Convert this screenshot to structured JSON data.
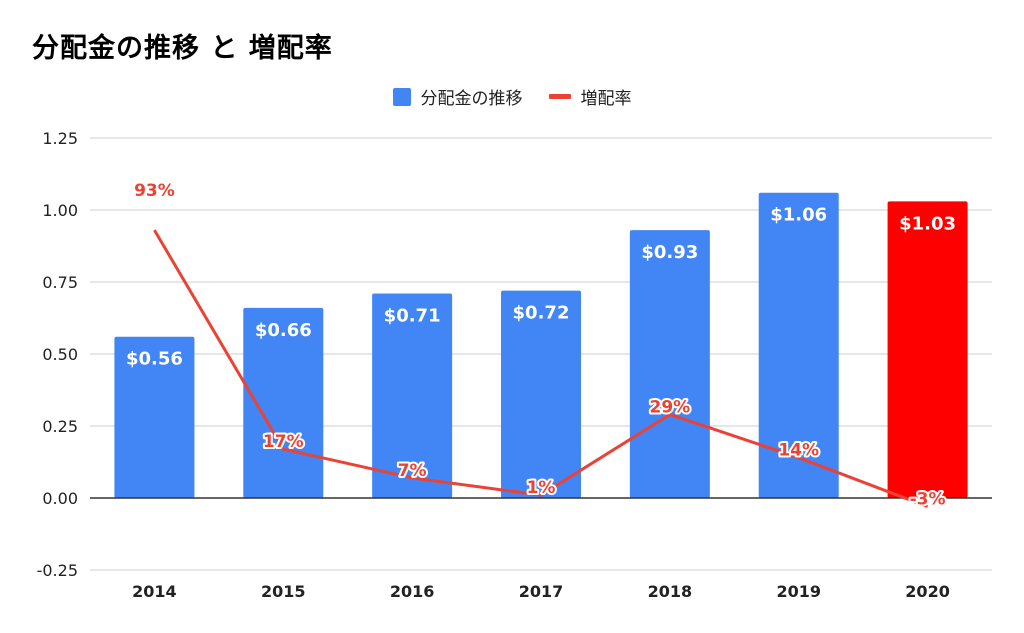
{
  "chart_data": {
    "type": "bar+line",
    "title": "分配金の推移 と 増配率",
    "categories": [
      "2014",
      "2015",
      "2016",
      "2017",
      "2018",
      "2019",
      "2020"
    ],
    "series": [
      {
        "name": "分配金の推移",
        "type": "bar",
        "values": [
          0.56,
          0.66,
          0.71,
          0.72,
          0.93,
          1.06,
          1.03
        ],
        "labels": [
          "$0.56",
          "$0.66",
          "$0.71",
          "$0.72",
          "$0.93",
          "$1.06",
          "$1.03"
        ],
        "color": "#4285f4",
        "highlight": {
          "index": 6,
          "color": "#ff0000"
        }
      },
      {
        "name": "増配率",
        "type": "line",
        "values": [
          0.93,
          0.17,
          0.07,
          0.01,
          0.29,
          0.14,
          -0.03
        ],
        "labels": [
          "93%",
          "17%",
          "7%",
          "1%",
          "29%",
          "14%",
          "-3%"
        ],
        "color": "#ea4335"
      }
    ],
    "yticks": [
      "1.25",
      "1.00",
      "0.75",
      "0.50",
      "0.25",
      "0.00",
      "-0.25"
    ],
    "ylim": [
      -0.25,
      1.25
    ],
    "grid": true,
    "legend_position": "top-center"
  }
}
